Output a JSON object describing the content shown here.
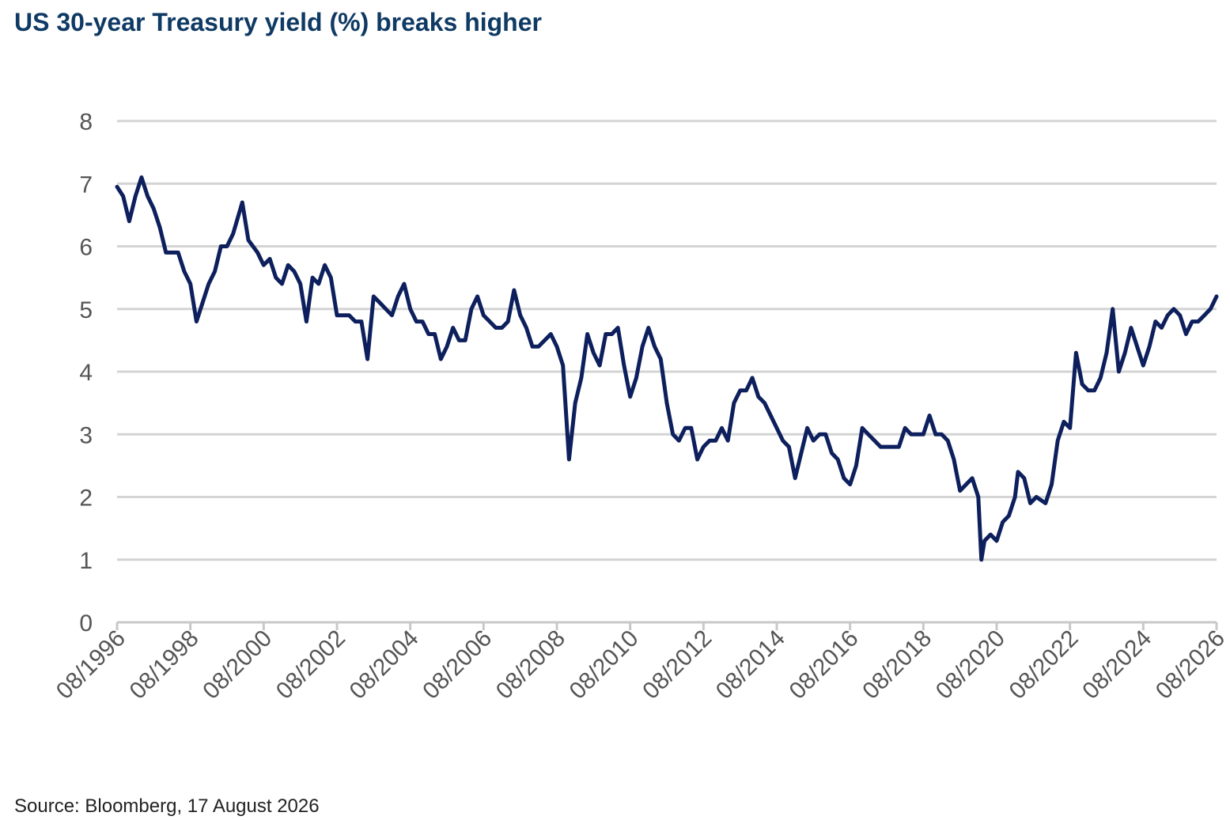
{
  "chart_data": {
    "type": "line",
    "title": "US 30-year Treasury yield (%) breaks higher",
    "xlabel": "",
    "ylabel": "",
    "ylim": [
      0,
      8
    ],
    "yticks": [
      "0",
      "1",
      "2",
      "3",
      "4",
      "5",
      "6",
      "7",
      "8"
    ],
    "xticks": [
      "08/1996",
      "08/1998",
      "08/2000",
      "08/2002",
      "08/2004",
      "08/2006",
      "08/2008",
      "08/2010",
      "08/2012",
      "08/2014",
      "08/2016",
      "08/2018",
      "08/2020",
      "08/2022",
      "08/2024",
      "08/2026"
    ],
    "grid": "horizontal",
    "line_color": "#0d1f5c",
    "series": [
      {
        "name": "",
        "points": [
          [
            "1996-08",
            6.95
          ],
          [
            "1996-10",
            6.8
          ],
          [
            "1996-12",
            6.4
          ],
          [
            "1997-02",
            6.8
          ],
          [
            "1997-04",
            7.1
          ],
          [
            "1997-06",
            6.8
          ],
          [
            "1997-08",
            6.6
          ],
          [
            "1997-10",
            6.3
          ],
          [
            "1997-12",
            5.9
          ],
          [
            "1998-02",
            5.9
          ],
          [
            "1998-04",
            5.9
          ],
          [
            "1998-06",
            5.6
          ],
          [
            "1998-08",
            5.4
          ],
          [
            "1998-10",
            4.8
          ],
          [
            "1998-12",
            5.1
          ],
          [
            "1999-02",
            5.4
          ],
          [
            "1999-04",
            5.6
          ],
          [
            "1999-06",
            6.0
          ],
          [
            "1999-08",
            6.0
          ],
          [
            "1999-10",
            6.2
          ],
          [
            "2000-01",
            6.7
          ],
          [
            "2000-03",
            6.1
          ],
          [
            "2000-06",
            5.9
          ],
          [
            "2000-08",
            5.7
          ],
          [
            "2000-10",
            5.8
          ],
          [
            "2000-12",
            5.5
          ],
          [
            "2001-02",
            5.4
          ],
          [
            "2001-04",
            5.7
          ],
          [
            "2001-06",
            5.6
          ],
          [
            "2001-08",
            5.4
          ],
          [
            "2001-10",
            4.8
          ],
          [
            "2001-12",
            5.5
          ],
          [
            "2002-02",
            5.4
          ],
          [
            "2002-04",
            5.7
          ],
          [
            "2002-06",
            5.5
          ],
          [
            "2002-08",
            4.9
          ],
          [
            "2002-10",
            4.9
          ],
          [
            "2002-12",
            4.9
          ],
          [
            "2003-02",
            4.8
          ],
          [
            "2003-04",
            4.8
          ],
          [
            "2003-06",
            4.2
          ],
          [
            "2003-08",
            5.2
          ],
          [
            "2003-10",
            5.1
          ],
          [
            "2003-12",
            5.0
          ],
          [
            "2004-02",
            4.9
          ],
          [
            "2004-04",
            5.2
          ],
          [
            "2004-06",
            5.4
          ],
          [
            "2004-08",
            5.0
          ],
          [
            "2004-10",
            4.8
          ],
          [
            "2004-12",
            4.8
          ],
          [
            "2005-02",
            4.6
          ],
          [
            "2005-04",
            4.6
          ],
          [
            "2005-06",
            4.2
          ],
          [
            "2005-08",
            4.4
          ],
          [
            "2005-10",
            4.7
          ],
          [
            "2005-12",
            4.5
          ],
          [
            "2006-02",
            4.5
          ],
          [
            "2006-04",
            5.0
          ],
          [
            "2006-06",
            5.2
          ],
          [
            "2006-08",
            4.9
          ],
          [
            "2006-10",
            4.8
          ],
          [
            "2006-12",
            4.7
          ],
          [
            "2007-02",
            4.7
          ],
          [
            "2007-04",
            4.8
          ],
          [
            "2007-06",
            5.3
          ],
          [
            "2007-08",
            4.9
          ],
          [
            "2007-10",
            4.7
          ],
          [
            "2007-12",
            4.4
          ],
          [
            "2008-02",
            4.4
          ],
          [
            "2008-04",
            4.5
          ],
          [
            "2008-06",
            4.6
          ],
          [
            "2008-08",
            4.4
          ],
          [
            "2008-10",
            4.1
          ],
          [
            "2008-12",
            2.6
          ],
          [
            "2009-02",
            3.5
          ],
          [
            "2009-04",
            3.9
          ],
          [
            "2009-06",
            4.6
          ],
          [
            "2009-08",
            4.3
          ],
          [
            "2009-10",
            4.1
          ],
          [
            "2009-12",
            4.6
          ],
          [
            "2010-02",
            4.6
          ],
          [
            "2010-04",
            4.7
          ],
          [
            "2010-06",
            4.1
          ],
          [
            "2010-08",
            3.6
          ],
          [
            "2010-10",
            3.9
          ],
          [
            "2010-12",
            4.4
          ],
          [
            "2011-02",
            4.7
          ],
          [
            "2011-04",
            4.4
          ],
          [
            "2011-06",
            4.2
          ],
          [
            "2011-08",
            3.5
          ],
          [
            "2011-10",
            3.0
          ],
          [
            "2011-12",
            2.9
          ],
          [
            "2012-02",
            3.1
          ],
          [
            "2012-04",
            3.1
          ],
          [
            "2012-06",
            2.6
          ],
          [
            "2012-08",
            2.8
          ],
          [
            "2012-10",
            2.9
          ],
          [
            "2012-12",
            2.9
          ],
          [
            "2013-02",
            3.1
          ],
          [
            "2013-04",
            2.9
          ],
          [
            "2013-06",
            3.5
          ],
          [
            "2013-08",
            3.7
          ],
          [
            "2013-10",
            3.7
          ],
          [
            "2013-12",
            3.9
          ],
          [
            "2014-02",
            3.6
          ],
          [
            "2014-04",
            3.5
          ],
          [
            "2014-06",
            3.3
          ],
          [
            "2014-08",
            3.1
          ],
          [
            "2014-10",
            2.9
          ],
          [
            "2014-12",
            2.8
          ],
          [
            "2015-02",
            2.3
          ],
          [
            "2015-04",
            2.7
          ],
          [
            "2015-06",
            3.1
          ],
          [
            "2015-08",
            2.9
          ],
          [
            "2015-10",
            3.0
          ],
          [
            "2015-12",
            3.0
          ],
          [
            "2016-02",
            2.7
          ],
          [
            "2016-04",
            2.6
          ],
          [
            "2016-06",
            2.3
          ],
          [
            "2016-08",
            2.2
          ],
          [
            "2016-10",
            2.5
          ],
          [
            "2016-12",
            3.1
          ],
          [
            "2017-02",
            3.0
          ],
          [
            "2017-04",
            2.9
          ],
          [
            "2017-06",
            2.8
          ],
          [
            "2017-08",
            2.8
          ],
          [
            "2017-10",
            2.8
          ],
          [
            "2017-12",
            2.8
          ],
          [
            "2018-02",
            3.1
          ],
          [
            "2018-04",
            3.0
          ],
          [
            "2018-06",
            3.0
          ],
          [
            "2018-08",
            3.0
          ],
          [
            "2018-10",
            3.3
          ],
          [
            "2018-12",
            3.0
          ],
          [
            "2019-02",
            3.0
          ],
          [
            "2019-04",
            2.9
          ],
          [
            "2019-06",
            2.6
          ],
          [
            "2019-08",
            2.1
          ],
          [
            "2019-10",
            2.2
          ],
          [
            "2019-12",
            2.3
          ],
          [
            "2020-02",
            2.0
          ],
          [
            "2020-03",
            1.0
          ],
          [
            "2020-04",
            1.3
          ],
          [
            "2020-06",
            1.4
          ],
          [
            "2020-08",
            1.3
          ],
          [
            "2020-10",
            1.6
          ],
          [
            "2020-12",
            1.7
          ],
          [
            "2021-02",
            2.0
          ],
          [
            "2021-03",
            2.4
          ],
          [
            "2021-05",
            2.3
          ],
          [
            "2021-07",
            1.9
          ],
          [
            "2021-09",
            2.0
          ],
          [
            "2021-12",
            1.9
          ],
          [
            "2022-02",
            2.2
          ],
          [
            "2022-04",
            2.9
          ],
          [
            "2022-06",
            3.2
          ],
          [
            "2022-08",
            3.1
          ],
          [
            "2022-10",
            4.3
          ],
          [
            "2022-12",
            3.8
          ],
          [
            "2023-02",
            3.7
          ],
          [
            "2023-04",
            3.7
          ],
          [
            "2023-06",
            3.9
          ],
          [
            "2023-08",
            4.3
          ],
          [
            "2023-10",
            5.0
          ],
          [
            "2023-12",
            4.0
          ],
          [
            "2024-02",
            4.3
          ],
          [
            "2024-04",
            4.7
          ],
          [
            "2024-06",
            4.4
          ],
          [
            "2024-08",
            4.1
          ],
          [
            "2024-10",
            4.4
          ],
          [
            "2024-12",
            4.8
          ],
          [
            "2025-02",
            4.7
          ],
          [
            "2025-04",
            4.9
          ],
          [
            "2025-06",
            5.0
          ],
          [
            "2025-08",
            4.9
          ],
          [
            "2025-10",
            4.6
          ],
          [
            "2025-12",
            4.8
          ],
          [
            "2026-02",
            4.8
          ],
          [
            "2026-04",
            4.9
          ],
          [
            "2026-06",
            5.0
          ],
          [
            "2026-08",
            5.2
          ]
        ]
      }
    ]
  },
  "footer": {
    "source": "Source: Bloomberg, 17 August 2026"
  }
}
